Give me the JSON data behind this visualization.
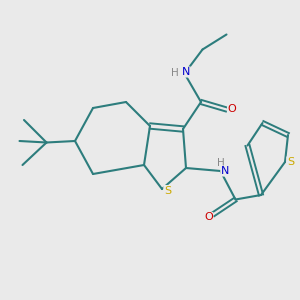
{
  "bg_color": "#eaeaea",
  "bond_color": "#2d7d7d",
  "atom_colors": {
    "S": "#ccaa00",
    "N": "#0000cc",
    "O": "#cc0000",
    "H": "#888888"
  },
  "figsize": [
    3.0,
    3.0
  ],
  "dpi": 100
}
